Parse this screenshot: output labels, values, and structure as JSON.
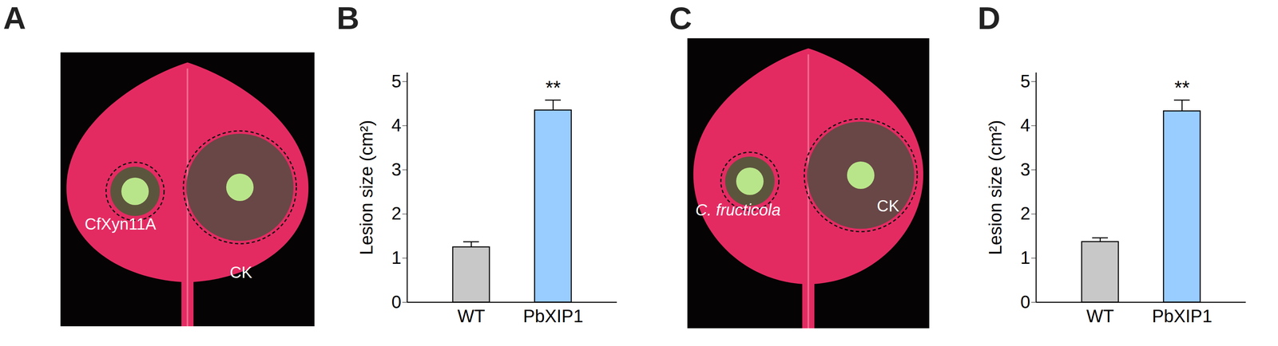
{
  "images": [
    {
      "panel": "A",
      "labels": [
        "CfXyn11A",
        "CK"
      ]
    },
    {
      "panel": "C",
      "labels": [
        "C. fructicola",
        "CK"
      ]
    }
  ],
  "chart_data": [
    {
      "panel": "B",
      "type": "bar",
      "categories": [
        "WT",
        "PbXIP1"
      ],
      "values": [
        1.25,
        4.35
      ],
      "errors": [
        0.12,
        0.23
      ],
      "colors": [
        "#c8c8c8",
        "#99ccff"
      ],
      "y_label": "Lesion size (cm²)",
      "ylim": [
        0,
        5.2
      ],
      "yticks": [
        0,
        1,
        2,
        3,
        4,
        5
      ],
      "annotations": [
        {
          "category": "PbXIP1",
          "text": "**"
        }
      ]
    },
    {
      "panel": "D",
      "type": "bar",
      "categories": [
        "WT",
        "PbXIP1"
      ],
      "values": [
        1.37,
        4.33
      ],
      "errors": [
        0.09,
        0.25
      ],
      "colors": [
        "#c8c8c8",
        "#99ccff"
      ],
      "y_label": "Lesion size (cm²)",
      "ylim": [
        0,
        5.2
      ],
      "yticks": [
        0,
        1,
        2,
        3,
        4,
        5
      ],
      "annotations": [
        {
          "category": "PbXIP1",
          "text": "**"
        }
      ]
    }
  ]
}
